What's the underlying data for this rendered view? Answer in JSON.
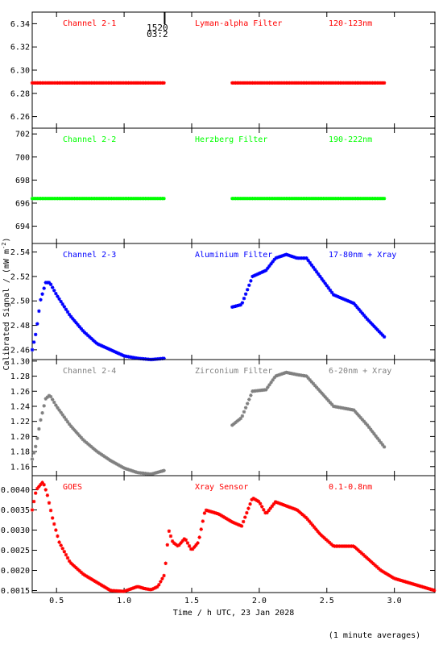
{
  "ylabel_main": "Calibrated Signal / (mW m",
  "ylabel_exp": "-2",
  "ylabel_close": ")",
  "xlabel": "Time / h UTC, 23 Jan 2028",
  "footnote": "(1 minute averages)",
  "marker": {
    "label_top": "1520",
    "label_bottom": "03:2",
    "x": 1.3
  },
  "chart_data": [
    {
      "type": "scatter",
      "title_left": "Channel 2-1",
      "title_mid": "Lyman-alpha Filter",
      "title_right": "120-123nm",
      "color": "#ff0000",
      "xlim": [
        0.32,
        3.3
      ],
      "ylim": [
        6.25,
        6.35
      ],
      "yticks": [
        6.26,
        6.28,
        6.3,
        6.32,
        6.34
      ],
      "ytick_labels": [
        "6.26",
        "6.28",
        "6.30",
        "6.32",
        "6.34"
      ],
      "segments": [
        {
          "x": [
            0.32,
            1.3
          ],
          "y": [
            6.289,
            6.289
          ]
        },
        {
          "x": [
            1.8,
            2.93
          ],
          "y": [
            6.289,
            6.289
          ]
        }
      ]
    },
    {
      "type": "scatter",
      "title_left": "Channel 2-2",
      "title_mid": "Herzberg Filter",
      "title_right": "190-222nm",
      "color": "#00ff00",
      "xlim": [
        0.32,
        3.3
      ],
      "ylim": [
        692.5,
        702.5
      ],
      "yticks": [
        694,
        696,
        698,
        700,
        702
      ],
      "ytick_labels": [
        "694",
        "696",
        "698",
        "700",
        "702"
      ],
      "segments": [
        {
          "x": [
            0.32,
            1.3
          ],
          "y": [
            696.4,
            696.4
          ]
        },
        {
          "x": [
            1.8,
            2.93
          ],
          "y": [
            696.4,
            696.4
          ]
        }
      ]
    },
    {
      "type": "scatter",
      "title_left": "Channel 2-3",
      "title_mid": "Aluminium Filter",
      "title_right": "17-80nm + Xray",
      "color": "#0000ff",
      "xlim": [
        0.32,
        3.3
      ],
      "ylim": [
        2.452,
        2.547
      ],
      "yticks": [
        2.46,
        2.48,
        2.5,
        2.52,
        2.54
      ],
      "ytick_labels": [
        "2.46",
        "2.48",
        "2.50",
        "2.52",
        "2.54"
      ],
      "segments": [
        {
          "x": [
            0.32,
            0.35,
            0.38,
            0.42,
            0.45,
            0.5,
            0.6,
            0.7,
            0.8,
            0.9,
            1.0,
            1.1,
            1.2,
            1.3
          ],
          "y": [
            2.46,
            2.475,
            2.5,
            2.515,
            2.515,
            2.505,
            2.488,
            2.475,
            2.465,
            2.46,
            2.455,
            2.453,
            2.452,
            2.453
          ]
        },
        {
          "x": [
            1.8,
            1.87,
            1.95,
            2.05,
            2.12,
            2.2,
            2.28,
            2.35,
            2.45,
            2.55,
            2.7,
            2.8,
            2.93
          ],
          "y": [
            2.495,
            2.497,
            2.52,
            2.525,
            2.535,
            2.538,
            2.535,
            2.535,
            2.52,
            2.505,
            2.498,
            2.485,
            2.47
          ]
        }
      ]
    },
    {
      "type": "scatter",
      "title_left": "Channel 2-4",
      "title_mid": "Zirconium Filter",
      "title_right": "6-20nm + Xray",
      "color": "#808080",
      "xlim": [
        0.32,
        3.3
      ],
      "ylim": [
        1.148,
        1.302
      ],
      "yticks": [
        1.16,
        1.18,
        1.2,
        1.22,
        1.24,
        1.26,
        1.28,
        1.3
      ],
      "ytick_labels": [
        "1.16",
        "1.18",
        "1.20",
        "1.22",
        "1.24",
        "1.26",
        "1.28",
        "1.30"
      ],
      "segments": [
        {
          "x": [
            0.32,
            0.35,
            0.38,
            0.42,
            0.45,
            0.5,
            0.6,
            0.7,
            0.8,
            0.9,
            1.0,
            1.1,
            1.2,
            1.3
          ],
          "y": [
            1.17,
            1.19,
            1.22,
            1.25,
            1.255,
            1.24,
            1.215,
            1.195,
            1.18,
            1.168,
            1.158,
            1.152,
            1.15,
            1.155
          ]
        },
        {
          "x": [
            1.8,
            1.87,
            1.95,
            2.05,
            2.12,
            2.2,
            2.28,
            2.35,
            2.45,
            2.55,
            2.7,
            2.8,
            2.93
          ],
          "y": [
            1.215,
            1.225,
            1.26,
            1.262,
            1.28,
            1.285,
            1.282,
            1.28,
            1.26,
            1.24,
            1.235,
            1.215,
            1.185
          ]
        }
      ]
    },
    {
      "type": "scatter",
      "title_left": "GOES",
      "title_mid": "Xray Sensor",
      "title_right": "0.1-0.8nm",
      "color": "#ff0000",
      "xlim": [
        0.32,
        3.3
      ],
      "ylim": [
        0.00145,
        0.00435
      ],
      "yticks": [
        0.0015,
        0.002,
        0.0025,
        0.003,
        0.0035,
        0.004
      ],
      "ytick_labels": [
        "0.0015",
        "0.0020",
        "0.0025",
        "0.0030",
        "0.0035",
        "0.0040"
      ],
      "xticks": [
        0.5,
        1.0,
        1.5,
        2.0,
        2.5,
        3.0
      ],
      "xtick_labels": [
        "0.5",
        "1.0",
        "1.5",
        "2.0",
        "2.5",
        "3.0"
      ],
      "segments": [
        {
          "x": [
            0.32,
            0.35,
            0.4,
            0.43,
            0.47,
            0.52,
            0.6,
            0.7,
            0.8,
            0.9,
            1.0,
            1.1,
            1.15,
            1.2,
            1.25,
            1.3,
            1.33,
            1.36,
            1.4,
            1.45,
            1.5,
            1.55,
            1.6,
            1.7,
            1.8,
            1.87,
            1.95,
            2.0,
            2.05,
            2.12,
            2.2,
            2.28,
            2.35,
            2.45,
            2.55,
            2.7,
            2.8,
            2.9,
            3.0,
            3.15,
            3.3
          ],
          "y": [
            0.0035,
            0.004,
            0.0042,
            0.0039,
            0.0033,
            0.0027,
            0.0022,
            0.0019,
            0.0017,
            0.0015,
            0.00148,
            0.0016,
            0.00155,
            0.00152,
            0.0016,
            0.0019,
            0.003,
            0.0027,
            0.0026,
            0.0028,
            0.0025,
            0.0027,
            0.0035,
            0.0034,
            0.0032,
            0.0031,
            0.0038,
            0.0037,
            0.0034,
            0.0037,
            0.0036,
            0.0035,
            0.0033,
            0.0029,
            0.0026,
            0.0026,
            0.0023,
            0.002,
            0.0018,
            0.00165,
            0.0015
          ]
        }
      ]
    }
  ]
}
